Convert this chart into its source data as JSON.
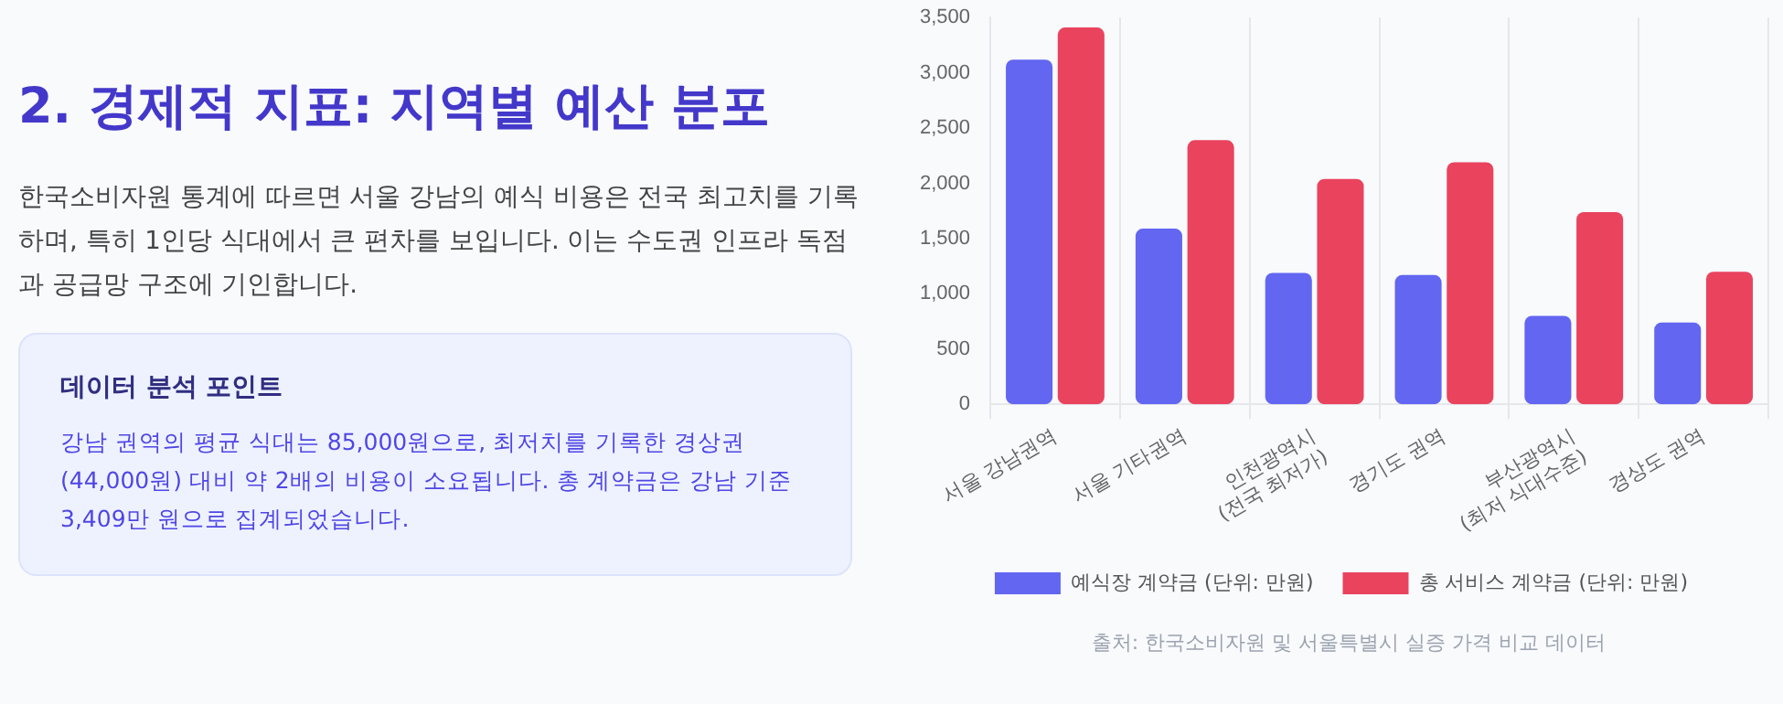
{
  "chart_data": {
    "type": "bar",
    "title": "2. 경제적 지표: 지역별 예산 분포",
    "subtitle": "한국소비자원 통계에 따르면 서울 강남의 예식 비용은 전국 최고치를 기록하며, 특히 1인당 식대에서 큰 편차를 보입니다. 이는 수도권 인프라 독점과 공급망 구조에 기인합니다.",
    "annotations": [
      "데이터 분석 포인트",
      "강남 권역의 평균 식대는 85,000원으로, 최저치를 기록한 경상권(44,000원) 대비 약 2배의 비용이 소요됩니다. 총 계약금은 강남 기준 3,409만 원으로 집계되었습니다.",
      "출처: 한국소비자원 및 서울특별시 실증 가격 비교 데이터"
    ],
    "categories": [
      "서울 강남권역",
      "서울 기타권역",
      "인천광역시\n(전국 최저가)",
      "경기도 권역",
      "부산광역시\n(최저 식대수준)",
      "경상도 권역"
    ],
    "series": [
      {
        "name": "예식장 계약금 (단위: 만원)",
        "color": "#6366f1",
        "values": [
          3120,
          1590,
          1190,
          1170,
          800,
          740
        ]
      },
      {
        "name": "총 서비스 계약금 (단위: 만원)",
        "color": "#e9435e",
        "values": [
          3410,
          2390,
          2040,
          2190,
          1740,
          1200
        ]
      }
    ],
    "ylim": [
      0,
      3500
    ],
    "yticks": [
      0,
      500,
      {
        "value": 1000,
        "label": "1,000"
      },
      {
        "value": 1500,
        "label": "1,500"
      },
      {
        "value": 2000,
        "label": "2,000"
      },
      {
        "value": 2500,
        "label": "2,500"
      },
      {
        "value": 3000,
        "label": "3,000"
      },
      {
        "value": 3500,
        "label": "3,500"
      }
    ],
    "grid": "x",
    "legend": "bottom"
  }
}
